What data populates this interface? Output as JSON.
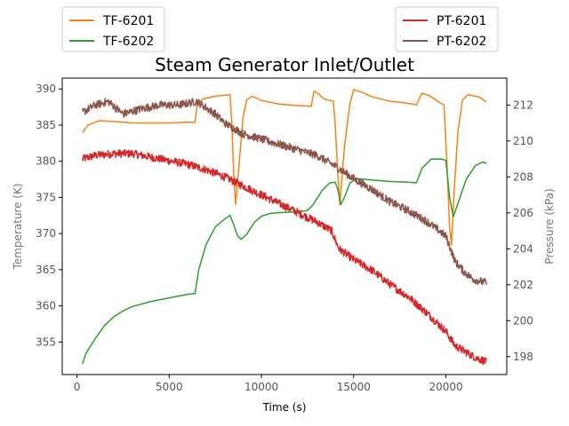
{
  "chart_data": {
    "type": "line",
    "title": "Steam Generator Inlet/Outlet",
    "xlabel": "Time (s)",
    "ylabel_left": "Temperature (K)",
    "ylabel_right": "Pressure (kPa)",
    "xlim": [
      -800,
      23300
    ],
    "ylim_left": [
      350.5,
      391.5
    ],
    "ylim_right": [
      197,
      213.5
    ],
    "xticks": [
      0,
      5000,
      10000,
      15000,
      20000
    ],
    "yticks_left": [
      355,
      360,
      365,
      370,
      375,
      380,
      385,
      390
    ],
    "yticks_right": [
      198,
      200,
      202,
      204,
      206,
      208,
      210,
      212
    ],
    "grid": false,
    "legend_left": {
      "placement": "top-left",
      "entries": [
        "TF-6201",
        "TF-6202"
      ]
    },
    "legend_right": {
      "placement": "top-right",
      "entries": [
        "PT-6201",
        "PT-6202"
      ]
    },
    "series": [
      {
        "name": "TF-6201",
        "axis": "left",
        "color": "#ff7f0e",
        "noise": 0,
        "points": [
          [
            300,
            384.0
          ],
          [
            600,
            385.0
          ],
          [
            1200,
            385.6
          ],
          [
            2000,
            385.5
          ],
          [
            3000,
            385.3
          ],
          [
            4000,
            385.3
          ],
          [
            5000,
            385.3
          ],
          [
            6000,
            385.4
          ],
          [
            6400,
            385.4
          ],
          [
            6500,
            387.5
          ],
          [
            6800,
            388.6
          ],
          [
            7500,
            389.0
          ],
          [
            8300,
            389.2
          ],
          [
            8400,
            385.0
          ],
          [
            8500,
            378.0
          ],
          [
            8600,
            374.0
          ],
          [
            8800,
            380.0
          ],
          [
            9000,
            386.0
          ],
          [
            9200,
            388.5
          ],
          [
            9500,
            389.0
          ],
          [
            10000,
            388.4
          ],
          [
            11000,
            387.9
          ],
          [
            12000,
            387.7
          ],
          [
            12700,
            387.6
          ],
          [
            12850,
            389.7
          ],
          [
            13100,
            389.3
          ],
          [
            13400,
            388.6
          ],
          [
            13900,
            388.3
          ],
          [
            14000,
            385.0
          ],
          [
            14150,
            378.0
          ],
          [
            14250,
            374.0
          ],
          [
            14500,
            382.0
          ],
          [
            14800,
            388.0
          ],
          [
            15000,
            389.9
          ],
          [
            15500,
            389.5
          ],
          [
            16000,
            388.9
          ],
          [
            17000,
            388.3
          ],
          [
            18000,
            388.0
          ],
          [
            18400,
            387.8
          ],
          [
            18700,
            389.4
          ],
          [
            19100,
            389.1
          ],
          [
            19600,
            388.2
          ],
          [
            19900,
            387.8
          ],
          [
            20050,
            380.0
          ],
          [
            20200,
            371.0
          ],
          [
            20300,
            368.4
          ],
          [
            20450,
            376.0
          ],
          [
            20650,
            384.0
          ],
          [
            20900,
            388.5
          ],
          [
            21200,
            389.2
          ],
          [
            21800,
            388.9
          ],
          [
            22200,
            388.2
          ]
        ]
      },
      {
        "name": "TF-6202",
        "axis": "left",
        "color": "#2ca02c",
        "noise": 0,
        "points": [
          [
            300,
            352.0
          ],
          [
            500,
            353.5
          ],
          [
            1000,
            355.5
          ],
          [
            1500,
            357.3
          ],
          [
            2000,
            358.5
          ],
          [
            2500,
            359.3
          ],
          [
            3000,
            359.9
          ],
          [
            4000,
            360.6
          ],
          [
            5000,
            361.1
          ],
          [
            6000,
            361.6
          ],
          [
            6400,
            361.7
          ],
          [
            6600,
            365.0
          ],
          [
            7000,
            368.5
          ],
          [
            7500,
            370.9
          ],
          [
            8000,
            372.0
          ],
          [
            8300,
            372.5
          ],
          [
            8500,
            371.2
          ],
          [
            8700,
            369.7
          ],
          [
            8900,
            369.2
          ],
          [
            9200,
            369.9
          ],
          [
            9600,
            371.5
          ],
          [
            10000,
            372.4
          ],
          [
            10500,
            372.8
          ],
          [
            11000,
            372.9
          ],
          [
            12000,
            373.0
          ],
          [
            12500,
            373.2
          ],
          [
            12800,
            374.0
          ],
          [
            13300,
            376.0
          ],
          [
            13700,
            377.0
          ],
          [
            14000,
            377.1
          ],
          [
            14150,
            376.0
          ],
          [
            14300,
            374.0
          ],
          [
            14500,
            375.0
          ],
          [
            14800,
            377.0
          ],
          [
            15200,
            377.6
          ],
          [
            16000,
            377.4
          ],
          [
            17000,
            377.2
          ],
          [
            18000,
            377.1
          ],
          [
            18400,
            377.0
          ],
          [
            18700,
            379.0
          ],
          [
            19200,
            380.3
          ],
          [
            19800,
            380.3
          ],
          [
            20000,
            380.1
          ],
          [
            20200,
            375.0
          ],
          [
            20400,
            372.3
          ],
          [
            20700,
            374.5
          ],
          [
            21100,
            377.5
          ],
          [
            21600,
            379.4
          ],
          [
            22000,
            379.9
          ],
          [
            22200,
            379.7
          ]
        ]
      },
      {
        "name": "PT-6201",
        "axis": "right",
        "color": "#d62728",
        "noise": 0.22,
        "points": [
          [
            300,
            209.0
          ],
          [
            1000,
            209.2
          ],
          [
            2000,
            209.3
          ],
          [
            3000,
            209.3
          ],
          [
            4000,
            209.1
          ],
          [
            5000,
            208.9
          ],
          [
            6000,
            208.7
          ],
          [
            7000,
            208.4
          ],
          [
            8000,
            208.0
          ],
          [
            9000,
            207.5
          ],
          [
            10000,
            207.0
          ],
          [
            11000,
            206.5
          ],
          [
            12000,
            206.0
          ],
          [
            13000,
            205.5
          ],
          [
            13800,
            205.0
          ],
          [
            14200,
            204.0
          ],
          [
            15000,
            203.4
          ],
          [
            16000,
            202.8
          ],
          [
            17000,
            202.0
          ],
          [
            18000,
            201.3
          ],
          [
            19000,
            200.4
          ],
          [
            20000,
            199.4
          ],
          [
            20500,
            198.6
          ],
          [
            21000,
            198.3
          ],
          [
            21500,
            198.0
          ],
          [
            22200,
            197.7
          ]
        ]
      },
      {
        "name": "PT-6202",
        "axis": "right",
        "color": "#8c564b",
        "noise": 0.22,
        "points": [
          [
            300,
            211.6
          ],
          [
            1000,
            212.0
          ],
          [
            1700,
            212.2
          ],
          [
            2500,
            211.5
          ],
          [
            3500,
            211.8
          ],
          [
            4500,
            212.0
          ],
          [
            5500,
            212.0
          ],
          [
            6500,
            212.2
          ],
          [
            7500,
            211.5
          ],
          [
            8000,
            211.0
          ],
          [
            9000,
            210.4
          ],
          [
            10000,
            210.1
          ],
          [
            11000,
            209.8
          ],
          [
            12000,
            209.5
          ],
          [
            13000,
            209.2
          ],
          [
            14000,
            208.6
          ],
          [
            15000,
            207.9
          ],
          [
            16000,
            207.3
          ],
          [
            17000,
            206.6
          ],
          [
            18000,
            206.1
          ],
          [
            19000,
            205.5
          ],
          [
            20000,
            204.7
          ],
          [
            20500,
            203.3
          ],
          [
            21000,
            202.7
          ],
          [
            21500,
            202.3
          ],
          [
            22200,
            202.1
          ]
        ]
      }
    ]
  }
}
